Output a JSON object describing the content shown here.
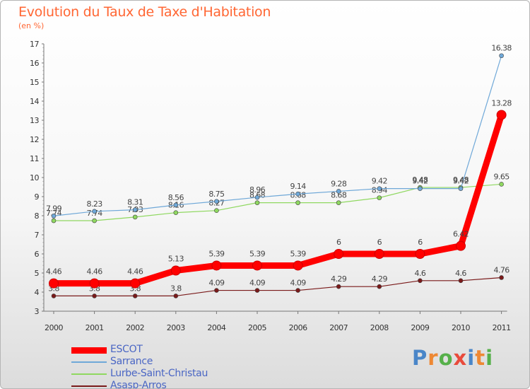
{
  "title": "Evolution du Taux de Taxe d'Habitation",
  "subtitle": "(en %)",
  "logo": {
    "text": "Proxiti",
    "letters": [
      {
        "ch": "P",
        "color": "#4a86c8"
      },
      {
        "ch": "r",
        "color": "#ee8833"
      },
      {
        "ch": "o",
        "color": "#56b04a"
      },
      {
        "ch": "x",
        "color": "#e94b3c"
      },
      {
        "ch": "i",
        "color": "#4a86c8"
      },
      {
        "ch": "t",
        "color": "#ee8833"
      },
      {
        "ch": "i",
        "color": "#56b04a"
      }
    ]
  },
  "chart_data": {
    "type": "line",
    "title": "Evolution du Taux de Taxe d'Habitation",
    "ylabel": "(en %)",
    "xlabel": "",
    "ylim": [
      3,
      17
    ],
    "yticks": [
      "3",
      "4",
      "5",
      "6",
      "7",
      "8",
      "9",
      "10",
      "11",
      "12",
      "13",
      "14",
      "15",
      "16",
      "17"
    ],
    "categories": [
      "2000",
      "2001",
      "2002",
      "2003",
      "2004",
      "2005",
      "2006",
      "2007",
      "2008",
      "2009",
      "2010",
      "2011"
    ],
    "grid": false,
    "legend_position": "bottom-left",
    "series": [
      {
        "name": "Asasp-Arros",
        "color": "#7a1a1a",
        "values": [
          3.8,
          3.8,
          3.8,
          3.8,
          4.09,
          4.09,
          4.09,
          4.29,
          4.29,
          4.6,
          4.6,
          4.76
        ],
        "labels": [
          "3.8",
          "3.8",
          "3.8",
          "3.8",
          "4.09",
          "4.09",
          "4.09",
          "4.29",
          "4.29",
          "4.6",
          "4.6",
          "4.76"
        ]
      },
      {
        "name": "Lurbe-Saint-Christau",
        "color": "#8fd860",
        "values": [
          7.74,
          7.74,
          7.93,
          8.16,
          8.27,
          8.68,
          8.68,
          8.68,
          8.94,
          9.48,
          9.48,
          9.65
        ],
        "labels": [
          "7.74",
          "7.74",
          "7.93",
          "8.16",
          "8.27",
          "8.68",
          "8.68",
          "8.68",
          "8.94",
          "9.48",
          "9.48",
          "9.65"
        ]
      },
      {
        "name": "Sarrance",
        "color": "#6fa8d8",
        "values": [
          7.99,
          8.23,
          8.31,
          8.56,
          8.75,
          8.96,
          9.14,
          9.28,
          9.42,
          9.42,
          9.42,
          16.38
        ],
        "labels": [
          "7.99",
          "8.23",
          "8.31",
          "8.56",
          "8.75",
          "8.96",
          "9.14",
          "9.28",
          "9.42",
          "9.42",
          "9.42",
          "16.38"
        ]
      },
      {
        "name": "ESCOT",
        "color": "#ff0000",
        "values": [
          4.46,
          4.46,
          4.46,
          5.13,
          5.39,
          5.39,
          5.39,
          6,
          6,
          6,
          6.42,
          13.28
        ],
        "labels": [
          "4.46",
          "4.46",
          "4.46",
          "5.13",
          "5.39",
          "5.39",
          "5.39",
          "6",
          "6",
          "6",
          "6.42",
          "13.28"
        ]
      }
    ],
    "legend": [
      {
        "name": "ESCOT",
        "color": "#ff0000"
      },
      {
        "name": "Sarrance",
        "color": "#6fa8d8"
      },
      {
        "name": "Lurbe-Saint-Christau",
        "color": "#8fd860"
      },
      {
        "name": "Asasp-Arros",
        "color": "#7a1a1a"
      }
    ]
  }
}
